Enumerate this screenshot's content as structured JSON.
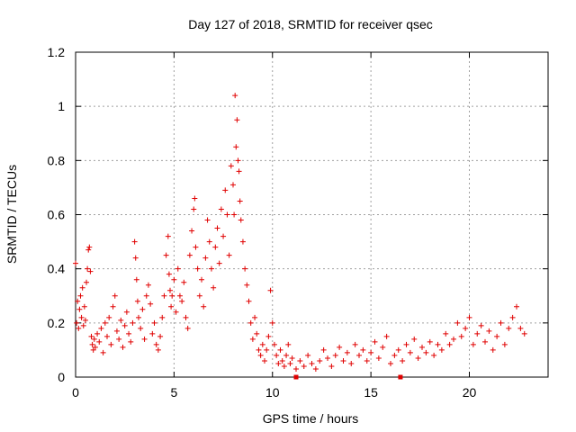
{
  "chart_data": {
    "type": "scatter",
    "title": "Day 127 of 2018, SRMTID for receiver qsec",
    "xlabel": "GPS time / hours",
    "ylabel": "SRMTID / TECUs",
    "xlim": [
      0,
      24
    ],
    "ylim": [
      0,
      1.2
    ],
    "xticks": [
      0,
      5,
      10,
      15,
      20
    ],
    "xtick_labels": [
      "0",
      "5",
      "10",
      "15",
      "20"
    ],
    "yticks": [
      0,
      0.2,
      0.4,
      0.6,
      0.8,
      1,
      1.2
    ],
    "ytick_labels": [
      "0",
      "0.2",
      "0.4",
      "0.6",
      "0.8",
      "1",
      "1.2"
    ],
    "grid": true,
    "marker": "plus",
    "color": "#e00000",
    "series": [
      {
        "name": "SRMTID",
        "x": [
          0.0,
          0.05,
          0.1,
          0.15,
          0.2,
          0.25,
          0.3,
          0.35,
          0.4,
          0.45,
          0.5,
          0.55,
          0.6,
          0.65,
          0.7,
          0.75,
          0.8,
          0.85,
          0.9,
          0.95,
          1.0,
          1.1,
          1.2,
          1.3,
          1.4,
          1.5,
          1.6,
          1.7,
          1.8,
          1.9,
          2.0,
          2.1,
          2.2,
          2.3,
          2.4,
          2.5,
          2.6,
          2.7,
          2.8,
          2.9,
          3.0,
          3.05,
          3.1,
          3.15,
          3.2,
          3.3,
          3.4,
          3.5,
          3.6,
          3.7,
          3.8,
          3.9,
          4.0,
          4.1,
          4.2,
          4.3,
          4.4,
          4.5,
          4.6,
          4.7,
          4.75,
          4.8,
          4.85,
          4.9,
          5.0,
          5.1,
          5.2,
          5.3,
          5.4,
          5.5,
          5.6,
          5.7,
          5.8,
          5.9,
          6.0,
          6.05,
          6.1,
          6.2,
          6.3,
          6.4,
          6.5,
          6.6,
          6.7,
          6.8,
          6.9,
          7.0,
          7.1,
          7.2,
          7.3,
          7.4,
          7.5,
          7.6,
          7.7,
          7.8,
          7.9,
          8.0,
          8.05,
          8.1,
          8.15,
          8.2,
          8.25,
          8.3,
          8.35,
          8.4,
          8.5,
          8.6,
          8.7,
          8.8,
          8.9,
          9.0,
          9.1,
          9.2,
          9.3,
          9.4,
          9.5,
          9.6,
          9.7,
          9.8,
          9.9,
          10.0,
          10.1,
          10.2,
          10.3,
          10.4,
          10.5,
          10.6,
          10.7,
          10.8,
          10.9,
          11.0,
          11.2,
          11.4,
          11.6,
          11.8,
          12.0,
          12.2,
          12.4,
          12.6,
          12.8,
          13.0,
          13.2,
          13.4,
          13.6,
          13.8,
          14.0,
          14.2,
          14.4,
          14.6,
          14.8,
          15.0,
          15.2,
          15.4,
          15.6,
          15.8,
          16.0,
          16.2,
          16.4,
          16.6,
          16.8,
          17.0,
          17.2,
          17.4,
          17.6,
          17.8,
          18.0,
          18.2,
          18.4,
          18.6,
          18.8,
          19.0,
          19.2,
          19.4,
          19.6,
          19.8,
          20.0,
          20.2,
          20.4,
          20.6,
          20.8,
          21.0,
          21.2,
          21.4,
          21.6,
          21.8,
          22.0,
          22.2,
          22.4,
          22.6,
          22.8
        ],
        "y": [
          0.42,
          0.2,
          0.28,
          0.18,
          0.25,
          0.3,
          0.22,
          0.33,
          0.19,
          0.26,
          0.21,
          0.35,
          0.4,
          0.47,
          0.48,
          0.39,
          0.15,
          0.12,
          0.1,
          0.14,
          0.11,
          0.16,
          0.13,
          0.18,
          0.09,
          0.2,
          0.15,
          0.22,
          0.12,
          0.26,
          0.3,
          0.17,
          0.14,
          0.21,
          0.11,
          0.19,
          0.24,
          0.16,
          0.13,
          0.2,
          0.5,
          0.44,
          0.36,
          0.28,
          0.22,
          0.18,
          0.25,
          0.14,
          0.3,
          0.34,
          0.27,
          0.16,
          0.2,
          0.12,
          0.1,
          0.15,
          0.22,
          0.3,
          0.45,
          0.52,
          0.38,
          0.32,
          0.26,
          0.3,
          0.36,
          0.24,
          0.4,
          0.3,
          0.28,
          0.35,
          0.22,
          0.18,
          0.45,
          0.54,
          0.62,
          0.66,
          0.48,
          0.4,
          0.3,
          0.36,
          0.26,
          0.44,
          0.58,
          0.5,
          0.4,
          0.33,
          0.48,
          0.55,
          0.42,
          0.62,
          0.52,
          0.69,
          0.6,
          0.45,
          0.78,
          0.71,
          0.6,
          1.04,
          0.85,
          0.95,
          0.8,
          0.76,
          0.65,
          0.58,
          0.5,
          0.4,
          0.34,
          0.28,
          0.2,
          0.14,
          0.22,
          0.16,
          0.1,
          0.08,
          0.12,
          0.06,
          0.1,
          0.15,
          0.32,
          0.2,
          0.12,
          0.08,
          0.05,
          0.1,
          0.06,
          0.04,
          0.08,
          0.12,
          0.05,
          0.07,
          0.03,
          0.06,
          0.04,
          0.08,
          0.05,
          0.03,
          0.06,
          0.1,
          0.07,
          0.04,
          0.08,
          0.11,
          0.06,
          0.09,
          0.05,
          0.12,
          0.08,
          0.1,
          0.06,
          0.09,
          0.13,
          0.07,
          0.11,
          0.15,
          0.05,
          0.08,
          0.1,
          0.06,
          0.12,
          0.09,
          0.14,
          0.07,
          0.11,
          0.09,
          0.13,
          0.08,
          0.12,
          0.1,
          0.16,
          0.12,
          0.14,
          0.2,
          0.15,
          0.18,
          0.22,
          0.12,
          0.16,
          0.19,
          0.13,
          0.17,
          0.1,
          0.15,
          0.2,
          0.12,
          0.18,
          0.22,
          0.26,
          0.18,
          0.16
        ]
      }
    ],
    "bad_samples_x": [
      11.2,
      16.5
    ]
  }
}
